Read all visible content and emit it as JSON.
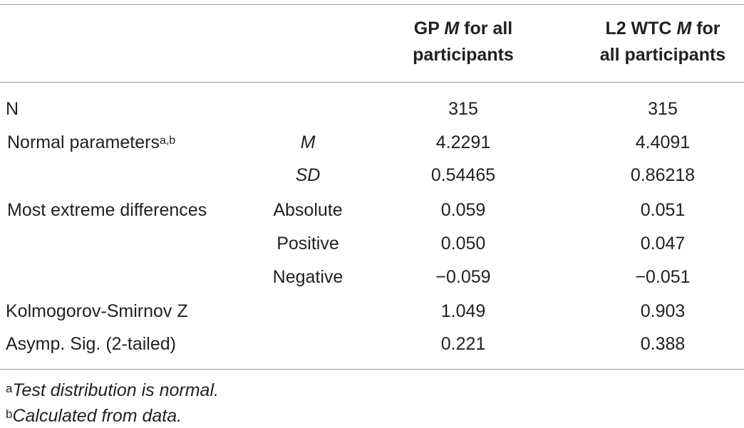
{
  "table": {
    "headers": {
      "col1": {
        "prefix": "GP ",
        "italic": "M",
        "suffix": " for all",
        "line2": "participants"
      },
      "col2": {
        "prefix": "L2 WTC ",
        "italic": "M",
        "suffix": " for",
        "line2": "all participants"
      }
    },
    "rows": [
      {
        "label": "N",
        "sub": "",
        "v1": "315",
        "v2": "315"
      },
      {
        "label": "Normal parameters",
        "label_sup": "a,b",
        "sub": "M",
        "v1": "4.2291",
        "v2": "4.4091"
      },
      {
        "label": "",
        "sub": "SD",
        "v1": "0.54465",
        "v2": "0.86218"
      },
      {
        "label": "Most extreme differences",
        "sub": "Absolute",
        "v1": "0.059",
        "v2": "0.051"
      },
      {
        "label": "",
        "sub": "Positive",
        "v1": "0.050",
        "v2": "0.047"
      },
      {
        "label": "",
        "sub": "Negative",
        "v1": "−0.059",
        "v2": "−0.051"
      },
      {
        "label": "Kolmogorov-Smirnov Z",
        "sub": "",
        "v1": "1.049",
        "v2": "0.903"
      },
      {
        "label": "Asymp. Sig. (2-tailed)",
        "sub": "",
        "v1": "0.221",
        "v2": "0.388"
      }
    ]
  },
  "footnotes": [
    {
      "mark": "a",
      "text": "Test distribution is normal."
    },
    {
      "mark": "b",
      "text": "Calculated from data."
    }
  ],
  "colors": {
    "rule": "#9a9a9a",
    "text": "#231f20"
  }
}
